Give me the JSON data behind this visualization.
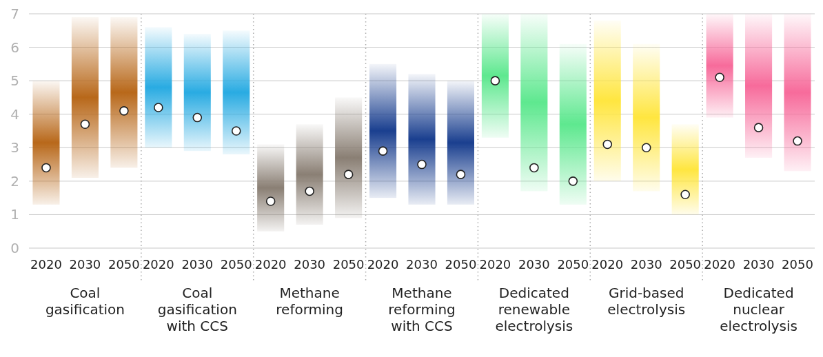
{
  "chart_data": {
    "type": "bar",
    "categories": [
      "2020",
      "2030",
      "2050",
      "2020",
      "2030",
      "2050",
      "2020",
      "2030",
      "2050",
      "2020",
      "2030",
      "2050",
      "2020",
      "2030",
      "2050",
      "2020",
      "2030",
      "2050",
      "2020",
      "2030",
      "2050"
    ],
    "annotations": [
      "Coal gasification",
      "Coal gasification with CCS",
      "Methane reforming",
      "Methane reforming with CCS",
      "Dedicated renewable electrolysis",
      "Grid-based electrolysis",
      "Dedicated nuclear electrolysis"
    ],
    "ylim": [
      0,
      7
    ],
    "yticks": [
      0,
      1,
      2,
      3,
      4,
      5,
      6,
      7
    ],
    "grid": "y",
    "series": [
      {
        "colors": [
          "#b8681a",
          "#b8681a",
          "#b8681a",
          "#29abe2",
          "#29abe2",
          "#29abe2",
          "#8a7f74",
          "#8a7f74",
          "#8a7f74",
          "#1a3f8f",
          "#1a3f8f",
          "#1a3f8f",
          "#5ee88f",
          "#5ee88f",
          "#5ee88f",
          "#ffe640",
          "#ffe640",
          "#ffe640",
          "#f76b9b",
          "#f76b9b",
          "#f76b9b"
        ],
        "base": [
          1.3,
          2.1,
          2.4,
          3.0,
          2.9,
          2.8,
          0.5,
          0.7,
          0.9,
          1.5,
          1.3,
          1.3,
          3.3,
          1.7,
          1.3,
          2.0,
          1.7,
          1.0,
          3.9,
          2.7,
          2.3
        ],
        "values": [
          3.7,
          4.8,
          4.5,
          3.6,
          3.5,
          3.7,
          2.6,
          3.0,
          3.6,
          4.0,
          3.9,
          3.7,
          3.7,
          5.3,
          4.8,
          4.8,
          4.4,
          2.7,
          3.1,
          4.3,
          4.7
        ]
      },
      {
        "type": "scatter",
        "color": "#ffffff",
        "marker": "circle",
        "values": [
          2.4,
          3.7,
          4.1,
          4.2,
          3.9,
          3.5,
          1.4,
          1.7,
          2.2,
          2.9,
          2.5,
          2.2,
          5.0,
          2.4,
          2.0,
          3.1,
          3.0,
          1.6,
          5.1,
          3.6,
          3.2
        ]
      }
    ]
  }
}
